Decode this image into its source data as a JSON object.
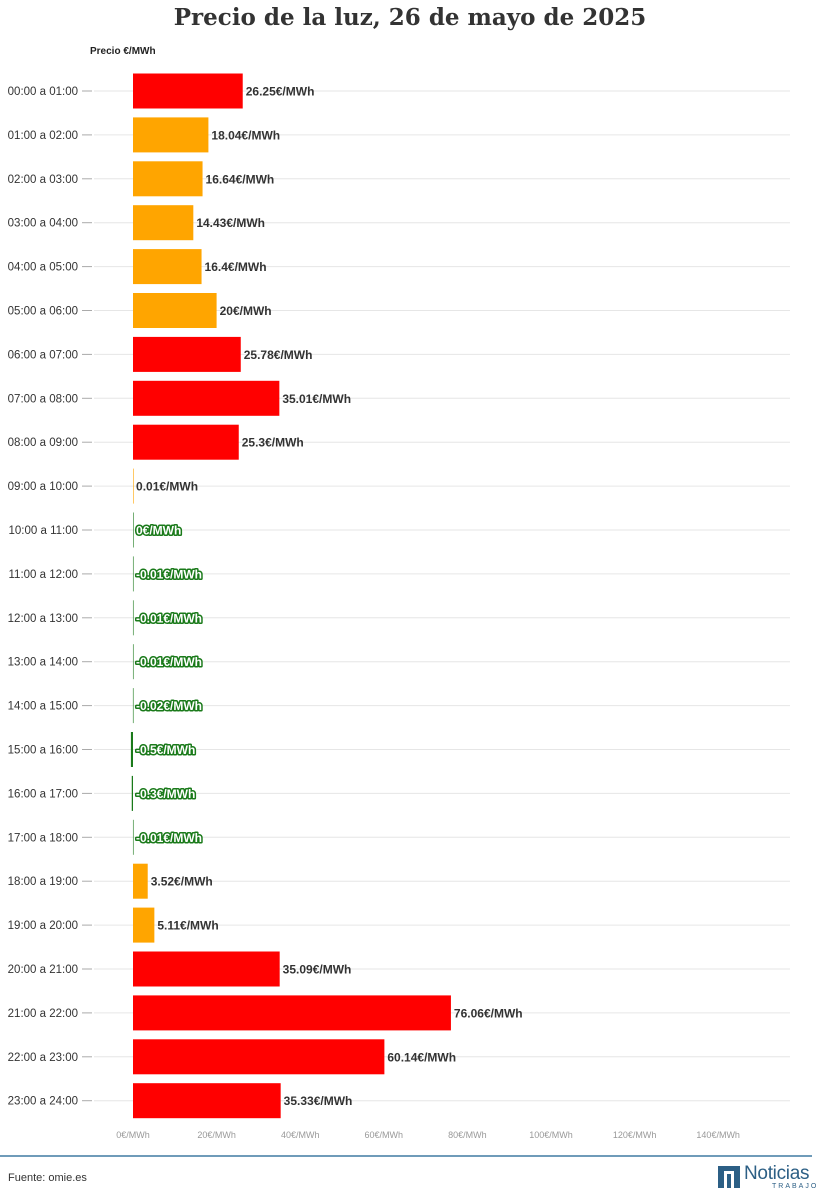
{
  "title": "Precio de la luz, 26 de mayo de 2025",
  "source": "Fuente: omie.es",
  "logo": {
    "name": "Noticias",
    "sub": "TRABAJO"
  },
  "colors": {
    "high": "#ff0000",
    "mid": "#ffa500",
    "negative": "#1a7a1a",
    "label_text": "#333333",
    "grid": "#e6e6e6",
    "tick": "#aaaaaa"
  },
  "chart_data": {
    "type": "bar",
    "orientation": "horizontal",
    "title": "Precio de la luz, 26 de mayo de 2025",
    "xlabel": "Precio €/MWh",
    "xlim": [
      0,
      140
    ],
    "x_ticks": [
      "0€/MWh",
      "20€/MWh",
      "40€/MWh",
      "60€/MWh",
      "80€/MWh",
      "100€/MWh",
      "120€/MWh",
      "140€/MWh"
    ],
    "categories": [
      "00:00 a 01:00",
      "01:00 a 02:00",
      "02:00 a 03:00",
      "03:00 a 04:00",
      "04:00 a 05:00",
      "05:00 a 06:00",
      "06:00 a 07:00",
      "07:00 a 08:00",
      "08:00 a 09:00",
      "09:00 a 10:00",
      "10:00 a 11:00",
      "11:00 a 12:00",
      "12:00 a 13:00",
      "13:00 a 14:00",
      "14:00 a 15:00",
      "15:00 a 16:00",
      "16:00 a 17:00",
      "17:00 a 18:00",
      "18:00 a 19:00",
      "19:00 a 20:00",
      "20:00 a 21:00",
      "21:00 a 22:00",
      "22:00 a 23:00",
      "23:00 a 24:00"
    ],
    "values": [
      26.25,
      18.04,
      16.64,
      14.43,
      16.4,
      20,
      25.78,
      35.01,
      25.3,
      0.01,
      0,
      -0.01,
      -0.01,
      -0.01,
      -0.02,
      -0.5,
      -0.3,
      -0.01,
      3.52,
      5.11,
      35.09,
      76.06,
      60.14,
      35.33
    ],
    "labels": [
      "26.25€/MWh",
      "18.04€/MWh",
      "16.64€/MWh",
      "14.43€/MWh",
      "16.4€/MWh",
      "20€/MWh",
      "25.78€/MWh",
      "35.01€/MWh",
      "25.3€/MWh",
      "0.01€/MWh",
      "0€/MWh",
      "-0.01€/MWh",
      "-0.01€/MWh",
      "-0.01€/MWh",
      "-0.02€/MWh",
      "-0.5€/MWh",
      "-0.3€/MWh",
      "-0.01€/MWh",
      "3.52€/MWh",
      "5.11€/MWh",
      "35.09€/MWh",
      "76.06€/MWh",
      "60.14€/MWh",
      "35.33€/MWh"
    ],
    "bar_colors": [
      "high",
      "mid",
      "mid",
      "mid",
      "mid",
      "mid",
      "high",
      "high",
      "high",
      "mid",
      "negative",
      "negative",
      "negative",
      "negative",
      "negative",
      "negative",
      "negative",
      "negative",
      "mid",
      "mid",
      "high",
      "high",
      "high",
      "high"
    ],
    "grid": true
  }
}
